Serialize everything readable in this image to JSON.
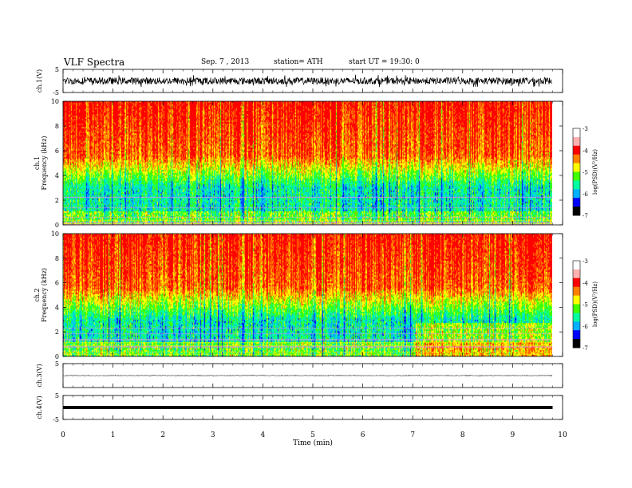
{
  "header": {
    "title": "VLF Spectra",
    "date": "Sep. 7 , 2013",
    "station": "station= ATH",
    "start_ut": "start UT = 19:30: 0"
  },
  "chart_data": {
    "type": "heatmap",
    "x_axis": {
      "label": "Time (min)",
      "range": [
        0,
        10
      ],
      "ticks": [
        "0",
        "1",
        "2",
        "3",
        "4",
        "5",
        "6",
        "7",
        "8",
        "9",
        "10"
      ],
      "data_end": 9.8
    },
    "panels": [
      {
        "id": "ch1_wave",
        "kind": "waveform",
        "ylabel": "ch.1(V)",
        "ylim": [
          -5,
          5
        ],
        "ticks": [
          "5",
          "-5"
        ],
        "baseline": 0,
        "noise_amplitude": 1.5,
        "trace_color": "#000000"
      },
      {
        "id": "ch1_spec",
        "kind": "spectrogram",
        "ylabel_top": "ch.1",
        "ylabel": "Frequency (kHz)",
        "ylim": [
          0,
          10
        ],
        "ticks": [
          "0",
          "2",
          "4",
          "6",
          "8",
          "10"
        ],
        "colorbar": {
          "label": "log(PSD)(V²/Hz)",
          "range": [
            -7,
            -3
          ],
          "ticks": [
            "-3",
            "-4",
            "-5",
            "-6",
            "-7"
          ]
        }
      },
      {
        "id": "ch2_spec",
        "kind": "spectrogram",
        "ylabel_top": "ch.2",
        "ylabel": "Frequency (kHz)",
        "ylim": [
          0,
          10
        ],
        "ticks": [
          "0",
          "2",
          "4",
          "6",
          "8",
          "10"
        ],
        "colorbar": {
          "label": "log(PSD)(V²/Hz)",
          "range": [
            -7,
            -3
          ],
          "ticks": [
            "-3",
            "-4",
            "-5",
            "-6",
            "-7"
          ]
        }
      },
      {
        "id": "ch3_wave",
        "kind": "waveform",
        "ylabel": "ch.3(V)",
        "ylim": [
          -5,
          5
        ],
        "ticks": [
          "5"
        ],
        "baseline": 0,
        "noise_amplitude": 0.15,
        "trace_color": "#444444"
      },
      {
        "id": "ch4_wave",
        "kind": "waveform",
        "ylabel": "ch.4(V)",
        "ylim": [
          -5,
          5
        ],
        "ticks": [
          "5",
          "-5"
        ],
        "baseline": 0,
        "noise_amplitude": 0.05,
        "trace_color": "#000000"
      }
    ],
    "colormap": [
      "#000000",
      "#0000ff",
      "#00b0ff",
      "#00ffa0",
      "#40ff00",
      "#ffff00",
      "#ff8000",
      "#ff0000",
      "#ffb0b0",
      "#ffffff"
    ],
    "grid": false
  }
}
